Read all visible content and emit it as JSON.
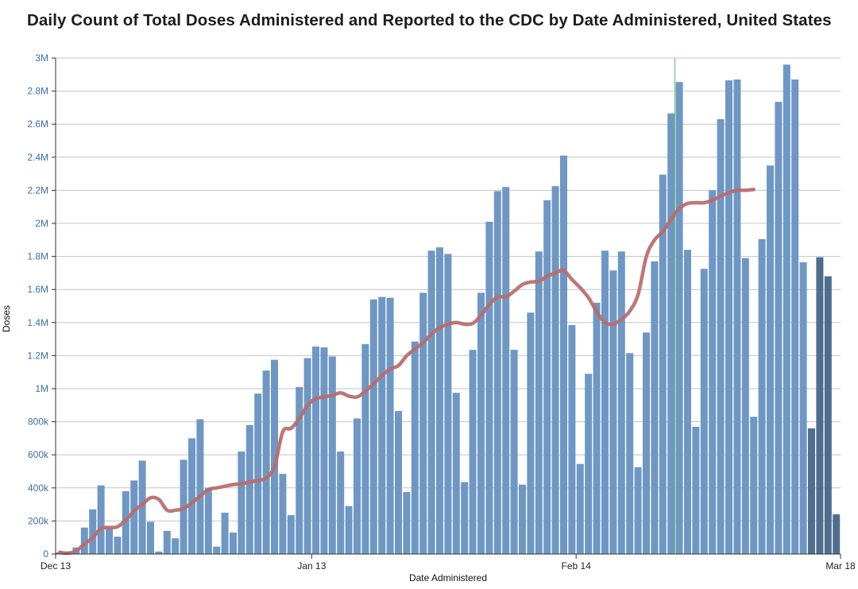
{
  "title": "Daily Count of Total Doses Administered and Reported to the CDC by Date Administered, United States",
  "chart_data": {
    "type": "bar",
    "title": "Daily Count of Total Doses Administered and Reported to the CDC by Date Administered, United States",
    "xlabel": "Date Administered",
    "ylabel": "Doses",
    "ylim": [
      0,
      3000000
    ],
    "yticks": [
      0,
      200000,
      400000,
      600000,
      800000,
      1000000,
      1200000,
      1400000,
      1600000,
      1800000,
      2000000,
      2200000,
      2400000,
      2600000,
      2800000,
      3000000
    ],
    "ytick_labels": [
      "0",
      "200k",
      "400k",
      "600k",
      "800k",
      "1M",
      "1.2M",
      "1.4M",
      "1.6M",
      "1.8M",
      "2M",
      "2.2M",
      "2.4M",
      "2.6M",
      "2.8M",
      "3M"
    ],
    "x_start": "Dec 13",
    "xticks": [
      {
        "label": "Dec 13",
        "index": 0
      },
      {
        "label": "Jan 13",
        "index": 31
      },
      {
        "label": "Feb 14",
        "index": 63
      },
      {
        "label": "Mar 18",
        "index": 95
      }
    ],
    "grid": true,
    "colors": {
      "bar": "#6f97c4",
      "bar_recent": "#4f6d8f",
      "line": "#b86a6a",
      "grid": "#c4c4c4",
      "marker": "#6cc27a"
    },
    "marker_index": 75,
    "recent_from_index": 91,
    "values": [
      10000,
      15000,
      40000,
      160000,
      270000,
      415000,
      160000,
      105000,
      380000,
      445000,
      565000,
      195000,
      15000,
      140000,
      95000,
      570000,
      700000,
      815000,
      400000,
      45000,
      250000,
      130000,
      620000,
      780000,
      970000,
      1110000,
      1175000,
      485000,
      235000,
      1010000,
      1185000,
      1255000,
      1250000,
      1195000,
      620000,
      290000,
      820000,
      1270000,
      1540000,
      1555000,
      1550000,
      865000,
      375000,
      1285000,
      1580000,
      1835000,
      1855000,
      1815000,
      975000,
      435000,
      1235000,
      1580000,
      2010000,
      2195000,
      2220000,
      1235000,
      420000,
      1460000,
      1830000,
      2140000,
      2225000,
      2410000,
      1385000,
      545000,
      1090000,
      1520000,
      1835000,
      1715000,
      1830000,
      1215000,
      525000,
      1340000,
      1770000,
      2295000,
      2665000,
      2855000,
      1840000,
      770000,
      1725000,
      2200000,
      2630000,
      2865000,
      2870000,
      1790000,
      830000,
      1905000,
      2350000,
      2735000,
      2960000,
      2870000,
      1765000,
      760000,
      1795000,
      1680000,
      240000
    ],
    "moving_average": [
      10000,
      5000,
      20000,
      60000,
      100000,
      155000,
      160000,
      165000,
      205000,
      260000,
      300000,
      340000,
      330000,
      265000,
      265000,
      275000,
      310000,
      350000,
      390000,
      400000,
      410000,
      420000,
      425000,
      435000,
      445000,
      460000,
      530000,
      740000,
      760000,
      820000,
      900000,
      940000,
      950000,
      960000,
      975000,
      955000,
      950000,
      985000,
      1030000,
      1080000,
      1120000,
      1140000,
      1200000,
      1240000,
      1280000,
      1330000,
      1370000,
      1390000,
      1400000,
      1390000,
      1395000,
      1445000,
      1510000,
      1555000,
      1555000,
      1590000,
      1630000,
      1645000,
      1650000,
      1680000,
      1700000,
      1715000,
      1660000,
      1610000,
      1550000,
      1465000,
      1400000,
      1390000,
      1420000,
      1470000,
      1570000,
      1800000,
      1900000,
      1950000,
      2025000,
      2090000,
      2120000,
      2125000,
      2125000,
      2140000,
      2165000,
      2185000,
      2200000,
      2200000,
      2205000
    ]
  }
}
